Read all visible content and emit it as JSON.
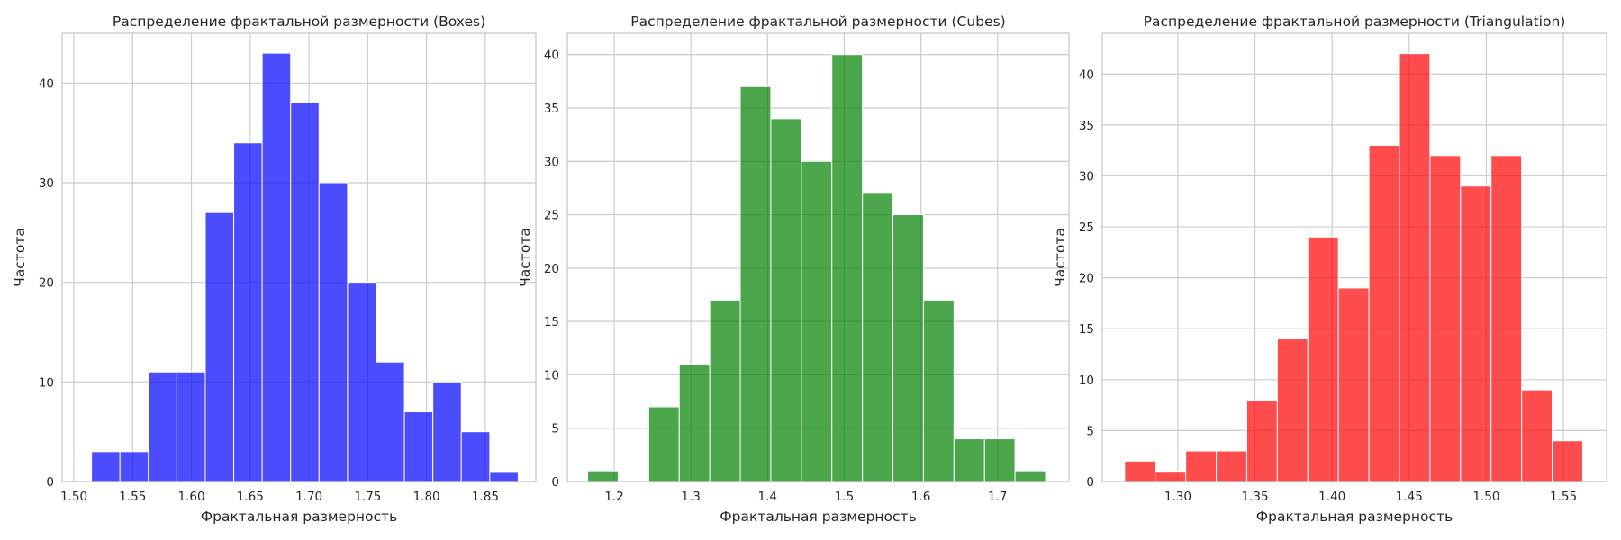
{
  "chart_data": [
    {
      "type": "bar",
      "title": "Распределение фрактальной размерности (Boxes)",
      "xlabel": "Фрактальная размерность",
      "ylabel": "Частота",
      "color": "#0000ff",
      "xlim": [
        1.49,
        1.893
      ],
      "ylim": [
        0,
        45
      ],
      "xticks": [
        "1.50",
        "1.55",
        "1.60",
        "1.65",
        "1.70",
        "1.75",
        "1.80",
        "1.85"
      ],
      "yticks": [
        "0",
        "10",
        "20",
        "30",
        "40"
      ],
      "grid": true,
      "bin_edges": [
        1.515,
        1.5392,
        1.5634,
        1.5876,
        1.6118,
        1.636,
        1.6602,
        1.6844,
        1.7086,
        1.7328,
        1.757,
        1.7812,
        1.8054,
        1.8296,
        1.8538,
        1.878
      ],
      "values": [
        3,
        3,
        11,
        11,
        27,
        34,
        43,
        38,
        30,
        20,
        12,
        7,
        10,
        5,
        1
      ]
    },
    {
      "type": "bar",
      "title": "Распределение фрактальной размерности (Cubes)",
      "xlabel": "Фрактальная размерность",
      "ylabel": "Частота",
      "color": "#008000",
      "xlim": [
        1.139,
        1.793
      ],
      "ylim": [
        0,
        42
      ],
      "xticks": [
        "1.2",
        "1.3",
        "1.4",
        "1.5",
        "1.6",
        "1.7"
      ],
      "yticks": [
        "0",
        "5",
        "10",
        "15",
        "20",
        "25",
        "30",
        "35",
        "40"
      ],
      "grid": true,
      "bin_edges": [
        1.1655,
        1.2053,
        1.2451,
        1.2849,
        1.3247,
        1.3645,
        1.4043,
        1.4441,
        1.4839,
        1.5237,
        1.5635,
        1.6033,
        1.6431,
        1.6829,
        1.7227,
        1.7625
      ],
      "values": [
        1,
        0,
        7,
        11,
        17,
        37,
        34,
        30,
        40,
        27,
        25,
        17,
        4,
        4,
        1
      ]
    },
    {
      "type": "bar",
      "title": "Распределение фрактальной размерности (Triangulation)",
      "xlabel": "Фрактальная размерность",
      "ylabel": "Частота",
      "color": "#ff0000",
      "xlim": [
        1.251,
        1.578
      ],
      "ylim": [
        0,
        44
      ],
      "xticks": [
        "1.30",
        "1.35",
        "1.40",
        "1.45",
        "1.50",
        "1.55"
      ],
      "yticks": [
        "0",
        "5",
        "10",
        "15",
        "20",
        "25",
        "30",
        "35",
        "40"
      ],
      "grid": true,
      "bin_edges": [
        1.2655,
        1.2853,
        1.3051,
        1.3249,
        1.3447,
        1.3645,
        1.3843,
        1.4041,
        1.4239,
        1.4437,
        1.4635,
        1.4833,
        1.5031,
        1.5229,
        1.5427,
        1.5625
      ],
      "values": [
        2,
        1,
        3,
        3,
        8,
        14,
        24,
        19,
        33,
        42,
        32,
        29,
        32,
        9,
        4
      ]
    }
  ]
}
